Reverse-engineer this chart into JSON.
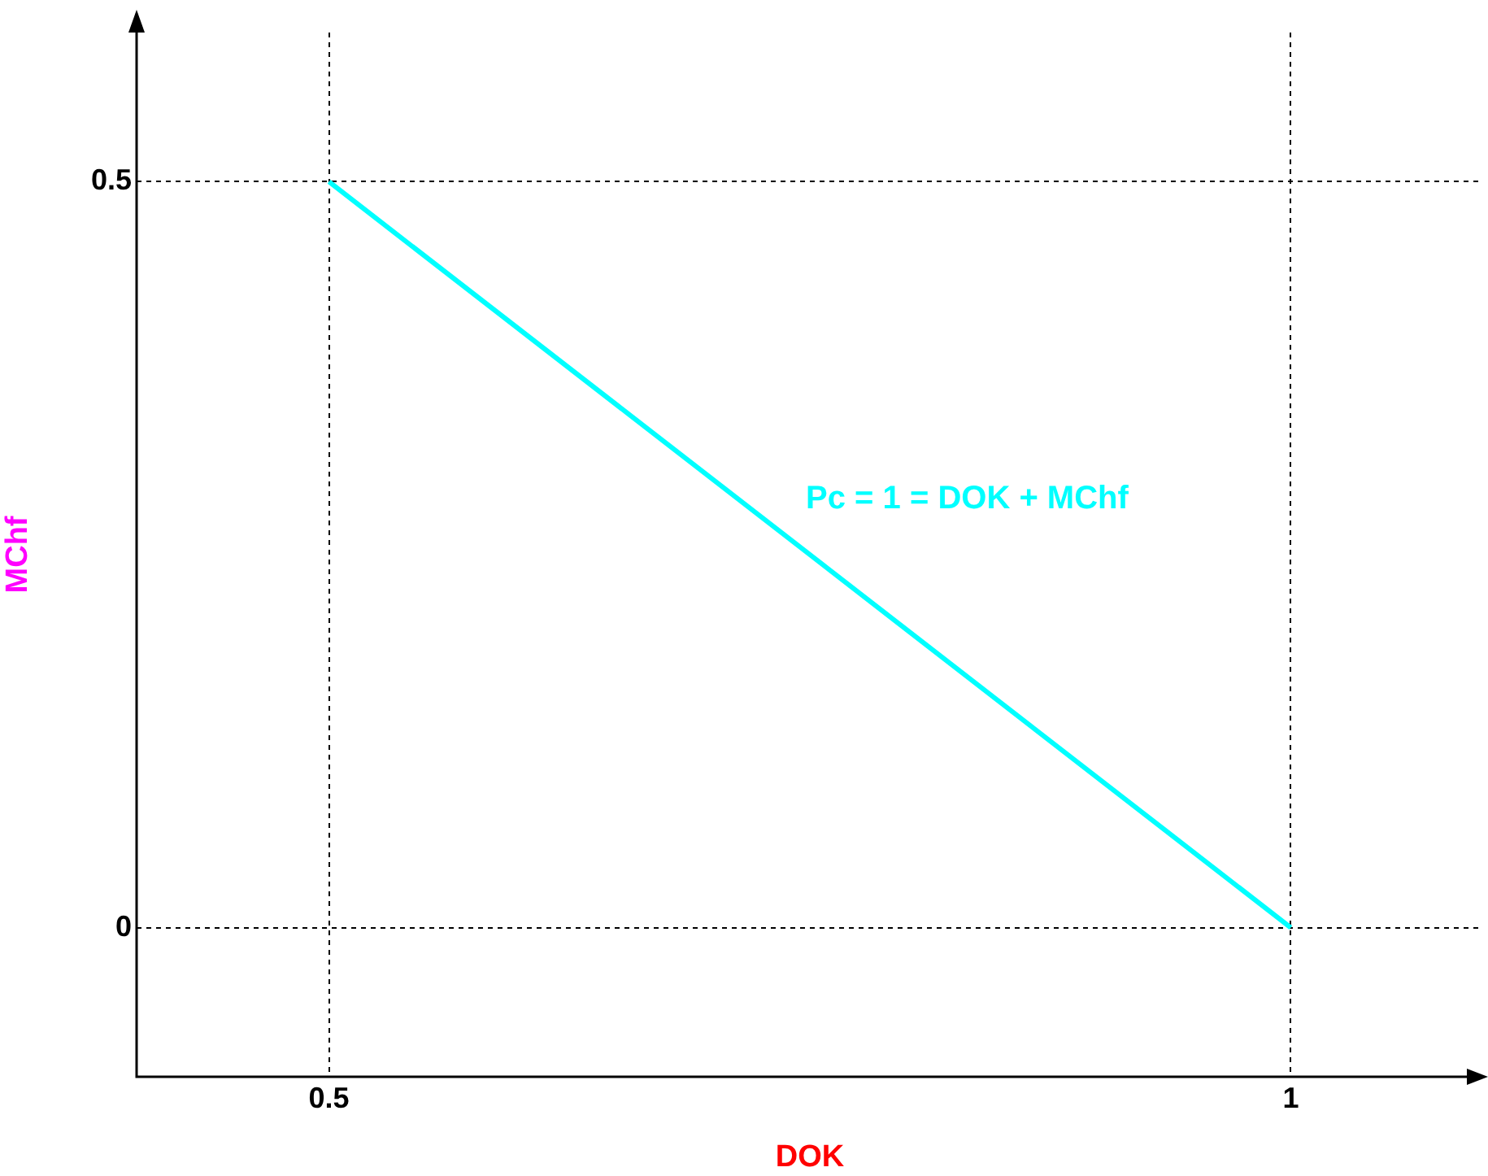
{
  "chart_data": {
    "type": "line",
    "xlabel": "DOK",
    "ylabel": "MChf",
    "x": [
      0.5,
      1
    ],
    "series": [
      {
        "color": "#00ffff",
        "values": [
          0.5,
          0
        ]
      }
    ],
    "xlim": [
      0.4,
      1.1
    ],
    "ylim": [
      -0.1,
      0.6
    ],
    "xticks": [
      0.5,
      1
    ],
    "yticks": [
      0,
      0.5
    ],
    "grid": true,
    "legend": false,
    "marker": "none",
    "line_style": "solid",
    "annotations": [
      "Pc = 1 = DOK + MChf"
    ]
  }
}
